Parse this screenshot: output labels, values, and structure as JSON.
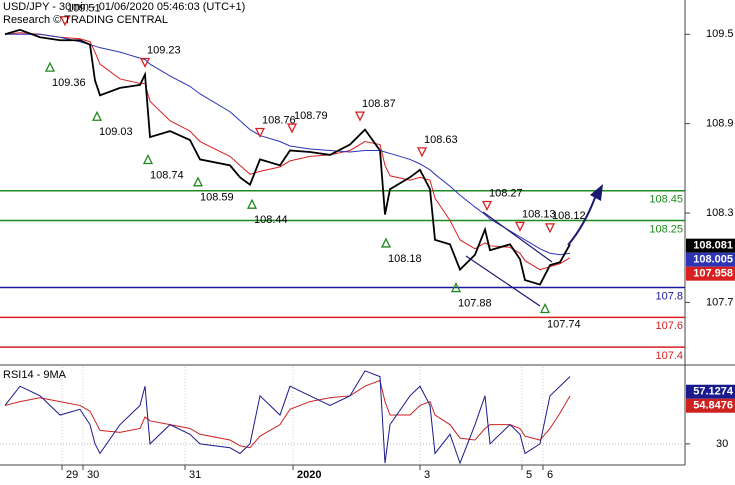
{
  "chart_data": [
    {
      "type": "line",
      "title": "USD/JPY - 30min - 01/06/2020 05:46:03 (UTC+1)",
      "subtitle": "Research © TRADING CENTRAL",
      "xlim": [
        0,
        137
      ],
      "ylim": [
        107.28,
        109.73
      ],
      "yticks": [
        109.5,
        108.9,
        108.3,
        107.7
      ],
      "xticks": [
        {
          "value": 12.4,
          "label": "29"
        },
        {
          "value": 16.6,
          "label": "30"
        },
        {
          "value": 37,
          "label": "31"
        },
        {
          "value": 58.6,
          "label": "2020"
        },
        {
          "value": 84,
          "label": "3"
        },
        {
          "value": 104.4,
          "label": "5"
        },
        {
          "value": 108.6,
          "label": "6"
        }
      ],
      "x": [
        1,
        4,
        8,
        12,
        16,
        18,
        19,
        20,
        24,
        28,
        29,
        30,
        34,
        38,
        40,
        46,
        48,
        50,
        52,
        56,
        58,
        62,
        66,
        70,
        73,
        76,
        77,
        78,
        82,
        84,
        86,
        87,
        90,
        92,
        95,
        97,
        98,
        102,
        104,
        105,
        108,
        110,
        112,
        114
      ],
      "series": [
        {
          "color": "#000000",
          "last": 108.081,
          "values": [
            109.5,
            109.53,
            109.48,
            109.46,
            109.46,
            109.43,
            109.19,
            109.09,
            109.14,
            109.16,
            109.23,
            108.81,
            108.85,
            108.79,
            108.66,
            108.62,
            108.54,
            108.49,
            108.66,
            108.62,
            108.72,
            108.71,
            108.69,
            108.76,
            108.86,
            108.72,
            108.29,
            108.46,
            108.54,
            108.59,
            108.46,
            108.12,
            108.09,
            107.92,
            108.02,
            108.19,
            108.05,
            108.09,
            107.99,
            107.85,
            107.82,
            107.95,
            107.97,
            108.09
          ]
        },
        {
          "color": "#2b35b5",
          "last": 108.005,
          "values": [
            109.5,
            109.5,
            109.5,
            109.48,
            109.45,
            109.43,
            109.42,
            109.41,
            109.38,
            109.34,
            109.33,
            109.3,
            109.22,
            109.15,
            109.1,
            108.98,
            108.92,
            108.86,
            108.82,
            108.78,
            108.75,
            108.73,
            108.72,
            108.71,
            108.72,
            108.72,
            108.71,
            108.7,
            108.66,
            108.63,
            108.59,
            108.56,
            108.48,
            108.42,
            108.34,
            108.29,
            108.26,
            108.18,
            108.14,
            108.12,
            108.06,
            108.03,
            108.02,
            108.03
          ]
        },
        {
          "color": "#d92020",
          "last": 107.958,
          "values": [
            109.5,
            109.51,
            109.5,
            109.48,
            109.47,
            109.45,
            109.38,
            109.3,
            109.2,
            109.17,
            109.17,
            109.05,
            108.92,
            108.85,
            108.78,
            108.68,
            108.62,
            108.56,
            108.58,
            108.61,
            108.65,
            108.68,
            108.69,
            108.72,
            108.78,
            108.76,
            108.62,
            108.55,
            108.52,
            108.54,
            108.52,
            108.4,
            108.25,
            108.12,
            108.06,
            108.1,
            108.08,
            108.07,
            108.03,
            107.98,
            107.92,
            107.94,
            107.96,
            108.0
          ]
        }
      ],
      "levels": [
        {
          "value": 108.45,
          "color": "#1f8a1f"
        },
        {
          "value": 108.25,
          "color": "#1f8a1f"
        },
        {
          "value": 107.8,
          "color": "#1a1aa0"
        },
        {
          "value": 107.6,
          "color": "#d42020"
        },
        {
          "value": 107.4,
          "color": "#d42020"
        }
      ],
      "annotations": [
        {
          "x": 13,
          "value": 109.51,
          "kind": "high"
        },
        {
          "x": 10,
          "value": 109.36,
          "kind": "low"
        },
        {
          "x": 29,
          "value": 109.23,
          "kind": "high"
        },
        {
          "x": 19.4,
          "value": 109.03,
          "kind": "low"
        },
        {
          "x": 29.6,
          "value": 108.74,
          "kind": "low"
        },
        {
          "x": 39.6,
          "value": 108.59,
          "kind": "low"
        },
        {
          "x": 50.4,
          "value": 108.44,
          "kind": "low"
        },
        {
          "x": 52,
          "value": 108.76,
          "kind": "high"
        },
        {
          "x": 58.4,
          "value": 108.79,
          "kind": "high"
        },
        {
          "x": 72,
          "value": 108.87,
          "kind": "high"
        },
        {
          "x": 84.4,
          "value": 108.63,
          "kind": "high"
        },
        {
          "x": 77.2,
          "value": 108.18,
          "kind": "low"
        },
        {
          "x": 97.4,
          "value": 108.27,
          "kind": "high"
        },
        {
          "x": 104,
          "value": 108.13,
          "kind": "high"
        },
        {
          "x": 110,
          "value": 108.12,
          "kind": "high"
        },
        {
          "x": 91.2,
          "value": 107.88,
          "kind": "low"
        },
        {
          "x": 109,
          "value": 107.74,
          "kind": "low"
        }
      ]
    },
    {
      "type": "line",
      "title": "RSI14 - 9MA",
      "ylim": [
        19,
        70
      ],
      "yticks": [
        30
      ],
      "series": [
        {
          "color": "#1a1a8c",
          "last": 57.1274,
          "values": [
            50,
            60,
            55,
            45,
            48,
            40,
            30,
            25,
            40,
            50,
            60,
            30,
            40,
            35,
            30,
            28,
            25,
            30,
            55,
            45,
            60,
            55,
            50,
            55,
            68,
            65,
            20,
            40,
            55,
            60,
            50,
            25,
            35,
            20,
            40,
            55,
            30,
            40,
            35,
            25,
            30,
            55,
            60,
            65
          ]
        },
        {
          "color": "#cc2222",
          "last": 54.8476,
          "values": [
            50,
            52,
            54,
            52,
            50,
            47,
            42,
            37,
            36,
            38,
            44,
            42,
            40,
            38,
            35,
            32,
            29,
            28,
            34,
            40,
            48,
            52,
            54,
            55,
            60,
            63,
            52,
            45,
            45,
            50,
            52,
            45,
            40,
            33,
            32,
            38,
            40,
            40,
            38,
            34,
            32,
            38,
            46,
            55
          ]
        }
      ]
    }
  ]
}
